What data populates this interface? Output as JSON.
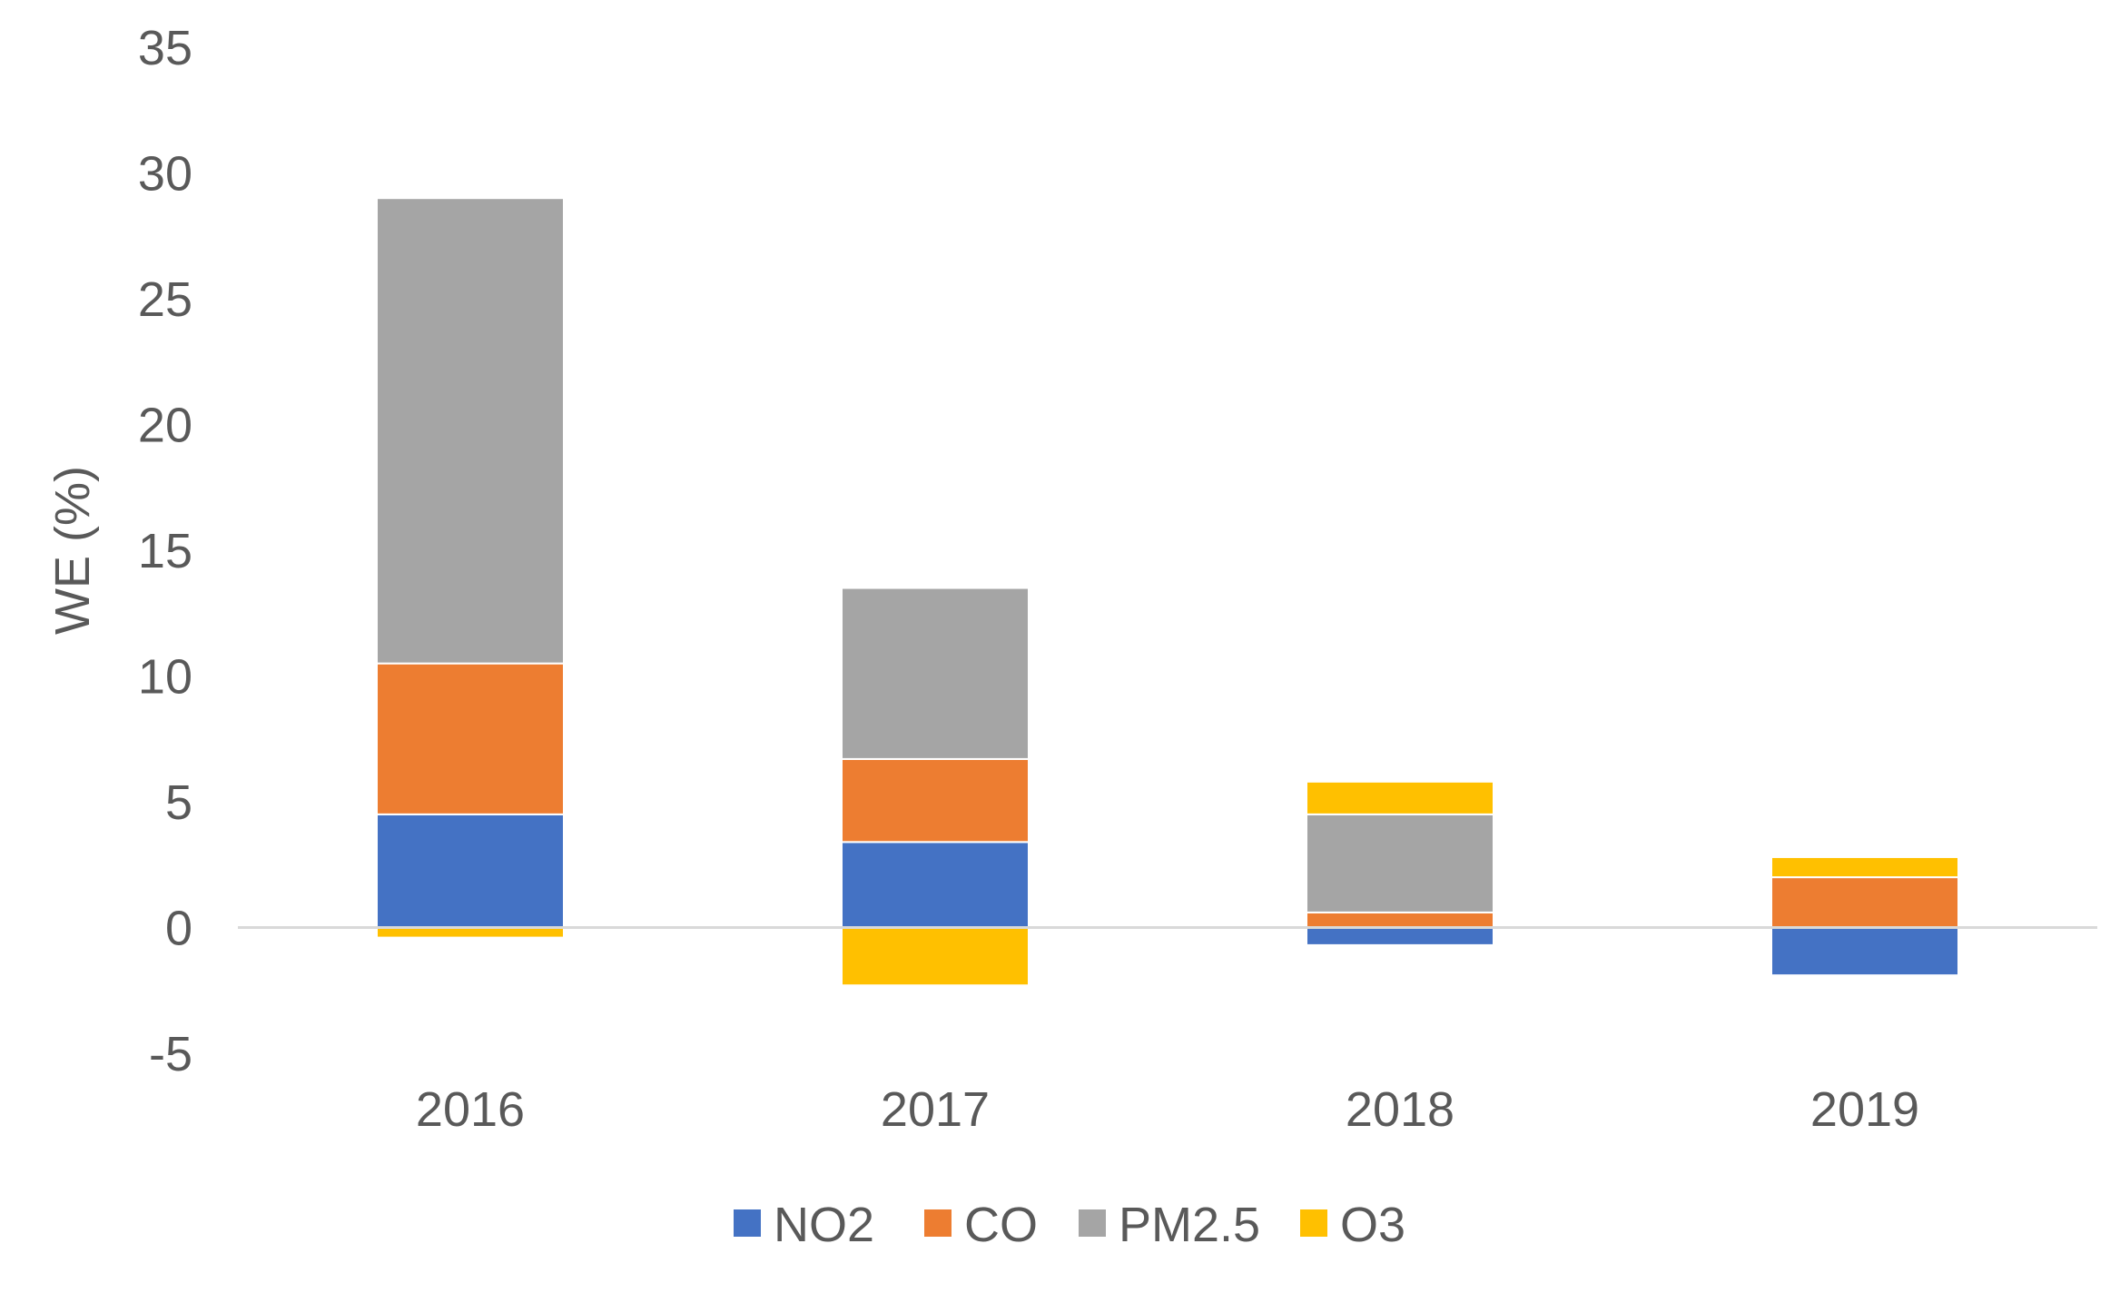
{
  "chart_data": {
    "type": "bar",
    "stacked": true,
    "title": "",
    "xlabel": "",
    "ylabel": "WE (%)",
    "ylim": [
      -5,
      35
    ],
    "yticks": [
      -5,
      0,
      5,
      10,
      15,
      20,
      25,
      30,
      35
    ],
    "ytick_labels": [
      "-5",
      "0",
      "5",
      "10",
      "15",
      "20",
      "25",
      "30",
      "35"
    ],
    "categories": [
      "2016",
      "2017",
      "2018",
      "2019"
    ],
    "series": [
      {
        "name": "NO2",
        "color": "#4472C4",
        "values": [
          4.5,
          3.4,
          -0.7,
          -1.9
        ]
      },
      {
        "name": "CO",
        "color": "#ED7D31",
        "values": [
          6.0,
          3.3,
          0.6,
          2.0
        ]
      },
      {
        "name": "PM2.5",
        "color": "#A5A5A5",
        "values": [
          18.5,
          6.8,
          3.9,
          0.0
        ]
      },
      {
        "name": "O3",
        "color": "#FFC000",
        "values": [
          -0.4,
          -2.3,
          1.3,
          0.8
        ]
      }
    ],
    "legend_position": "bottom",
    "grid": false
  }
}
